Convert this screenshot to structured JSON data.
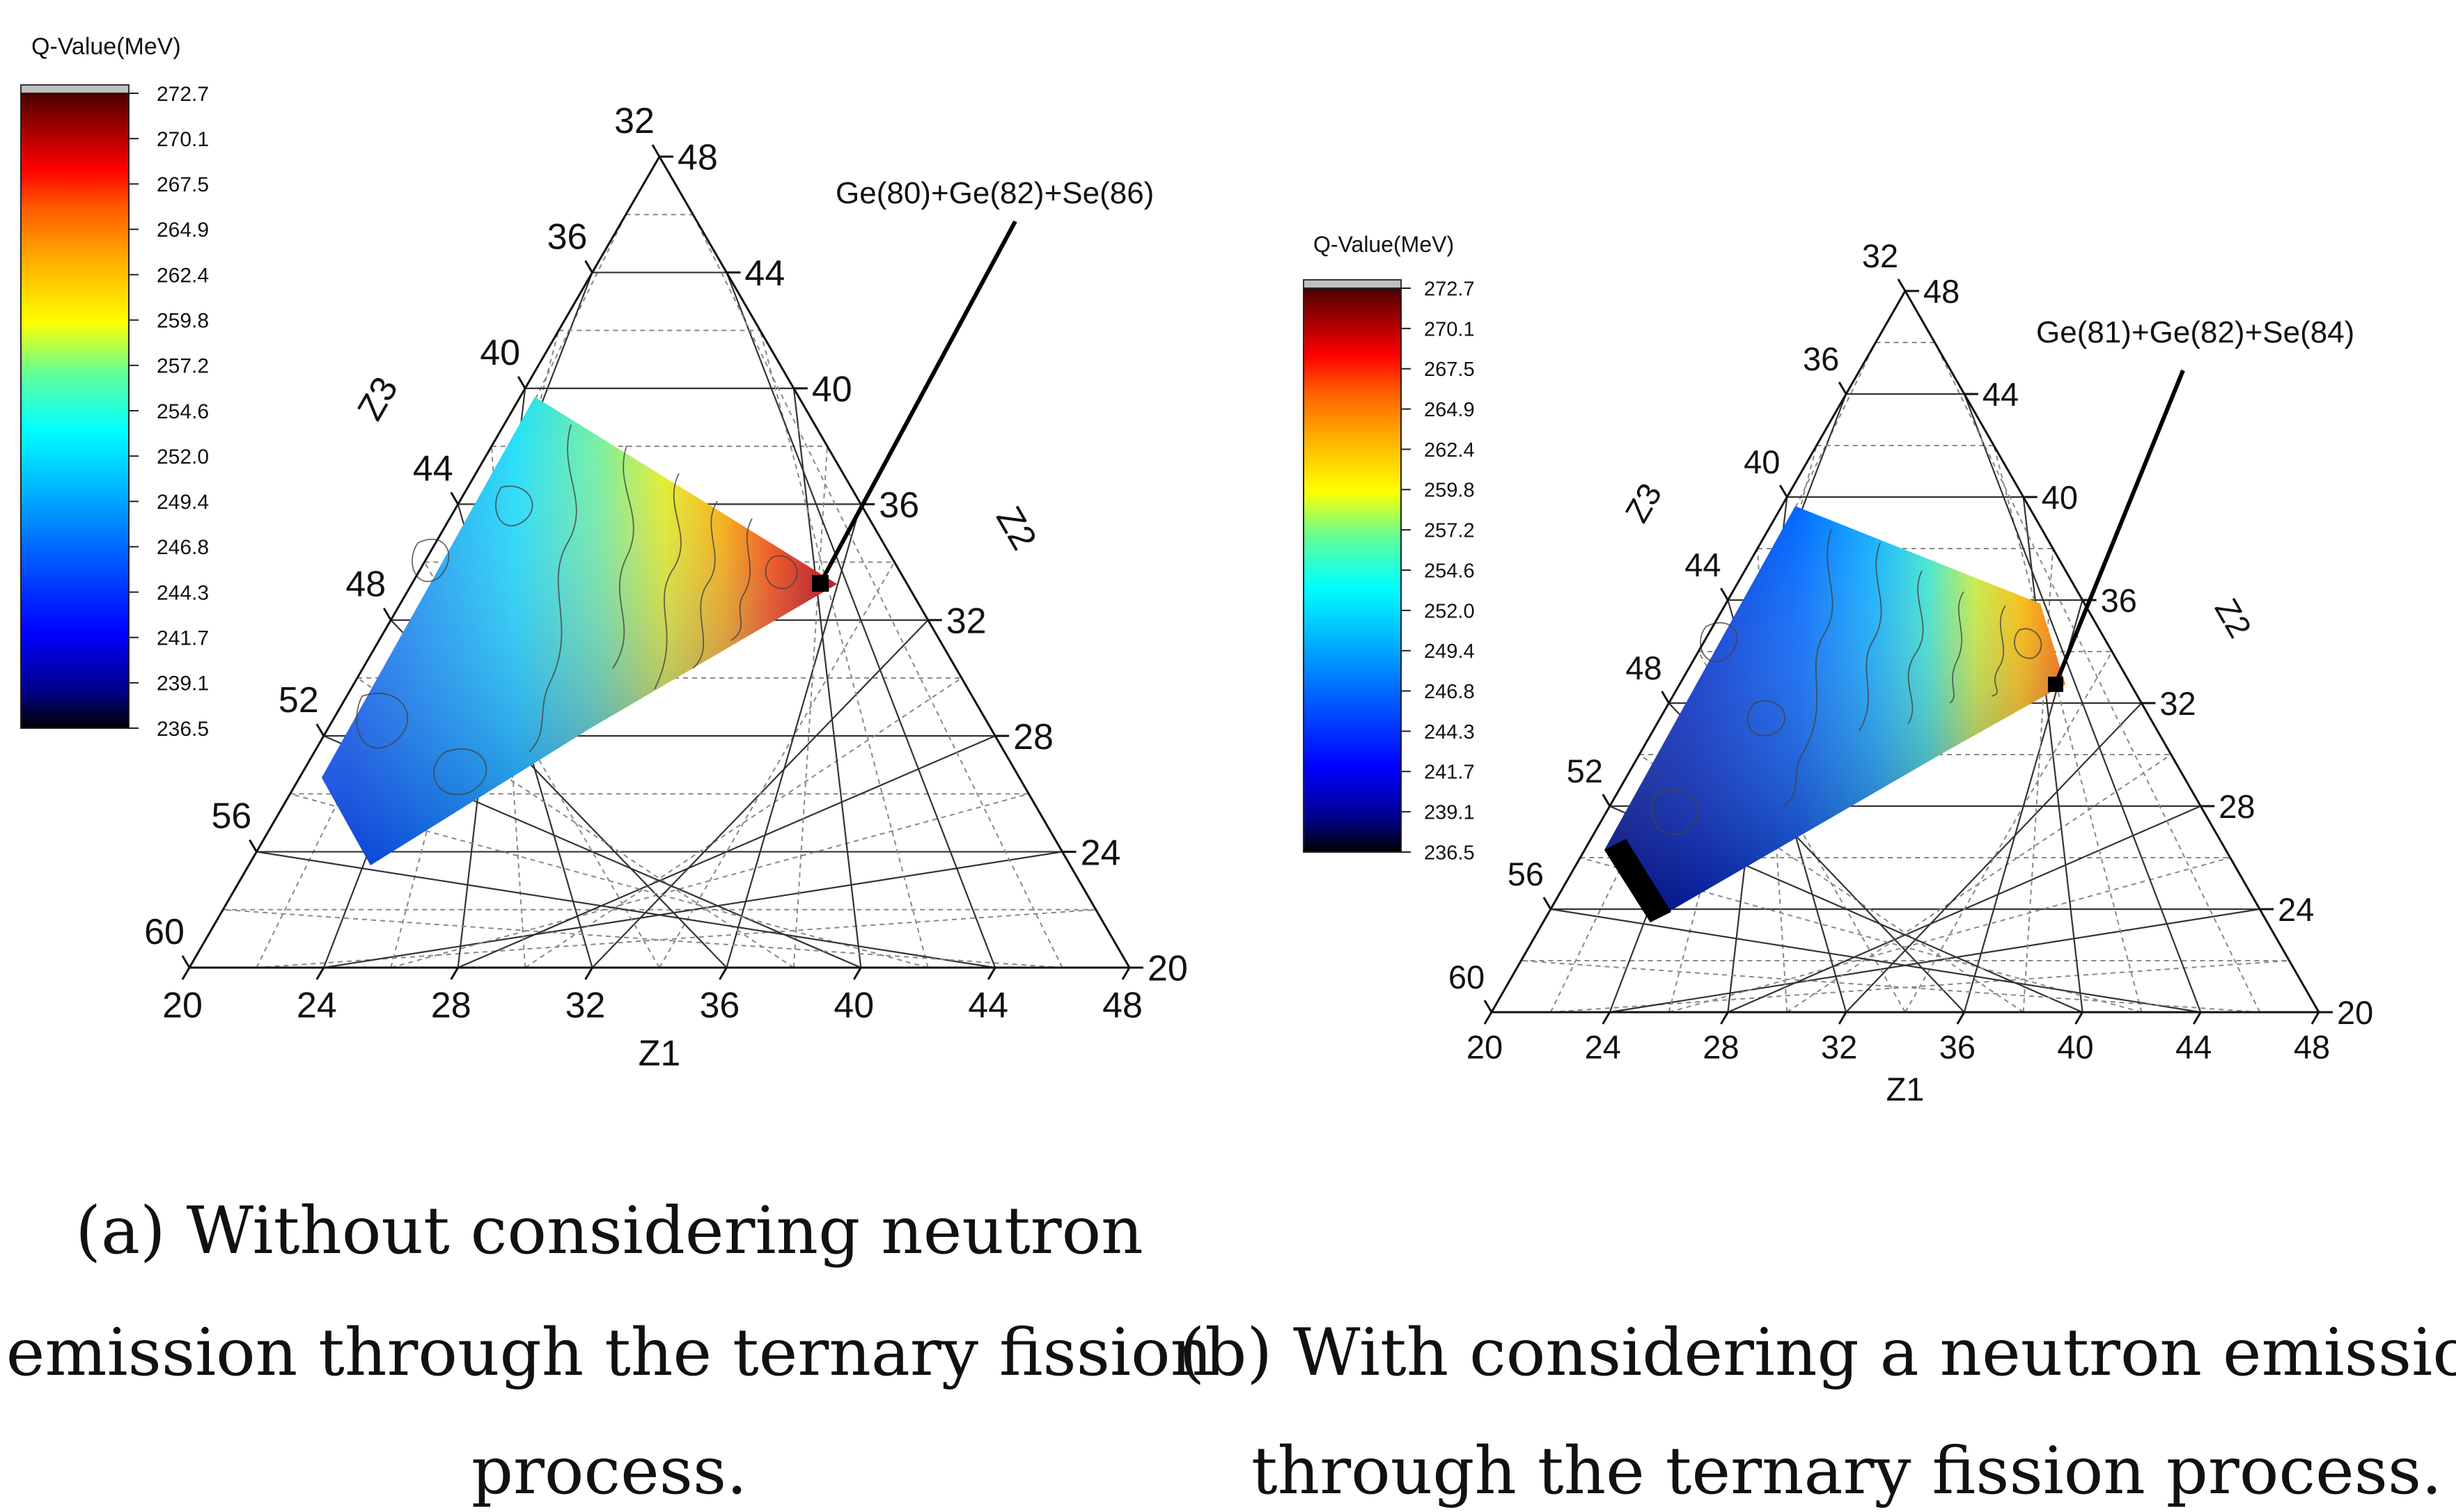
{
  "chart_data": [
    {
      "type": "ternary-contour",
      "panel": "a",
      "caption_lines": [
        "(a) Without considering neutron",
        "emission through the ternary fission",
        "process."
      ],
      "colorbar": {
        "title": "Q-Value(MeV)",
        "ticks": [
          "272.7",
          "270.1",
          "267.5",
          "264.9",
          "262.4",
          "259.8",
          "257.2",
          "254.6",
          "252.0",
          "249.4",
          "246.8",
          "244.3",
          "241.7",
          "239.1",
          "236.5"
        ],
        "range": [
          236.5,
          272.7
        ]
      },
      "axes": {
        "z1": {
          "label": "Z1",
          "ticks": [
            "20",
            "24",
            "28",
            "32",
            "36",
            "40",
            "44",
            "48"
          ],
          "range": [
            20,
            48
          ]
        },
        "z2": {
          "label": "Z2",
          "ticks": [
            "20",
            "24",
            "28",
            "32",
            "36",
            "40",
            "44",
            "48"
          ],
          "range": [
            20,
            48
          ]
        },
        "z3": {
          "label": "Z3",
          "ticks": [
            "32",
            "36",
            "40",
            "44",
            "48",
            "52",
            "56",
            "60"
          ],
          "range": [
            32,
            60
          ]
        }
      },
      "annotation": {
        "text": "Ge(80)+Ge(82)+Se(86)",
        "z1": 32,
        "z2": 32,
        "z3": 34
      },
      "q_range": [
        236.5,
        270.1
      ]
    },
    {
      "type": "ternary-contour",
      "panel": "b",
      "caption_lines": [
        "(b) With considering a neutron emission",
        "through the ternary fission process."
      ],
      "colorbar": {
        "title": "Q-Value(MeV)",
        "ticks": [
          "272.7",
          "270.1",
          "267.5",
          "264.9",
          "262.4",
          "259.8",
          "257.2",
          "254.6",
          "252.0",
          "249.4",
          "246.8",
          "244.3",
          "241.7",
          "239.1",
          "236.5"
        ],
        "range": [
          236.5,
          272.7
        ]
      },
      "axes": {
        "z1": {
          "label": "Z1",
          "ticks": [
            "20",
            "24",
            "28",
            "32",
            "36",
            "40",
            "44",
            "48"
          ],
          "range": [
            20,
            48
          ]
        },
        "z2": {
          "label": "Z2",
          "ticks": [
            "20",
            "24",
            "28",
            "32",
            "36",
            "40",
            "44",
            "48"
          ],
          "range": [
            20,
            48
          ]
        },
        "z3": {
          "label": "Z3",
          "ticks": [
            "32",
            "36",
            "40",
            "44",
            "48",
            "52",
            "56",
            "60"
          ],
          "range": [
            32,
            60
          ]
        }
      },
      "annotation": {
        "text": "Ge(81)+Ge(82)+Se(84)",
        "z1": 32,
        "z2": 32,
        "z3": 34
      },
      "q_range": [
        236.5,
        266.0
      ]
    }
  ],
  "colors": {
    "colormap": [
      "#000000",
      "#00008b",
      "#0000ff",
      "#0064ff",
      "#00c8ff",
      "#00ffff",
      "#64ff96",
      "#ffff00",
      "#ffaa00",
      "#ff5a00",
      "#ff0000",
      "#8b0000",
      "#4a0000"
    ],
    "cap": "#c0c0c0",
    "grid_solid": "#333333",
    "grid_dashed": "#888888",
    "contour": "#444444"
  }
}
